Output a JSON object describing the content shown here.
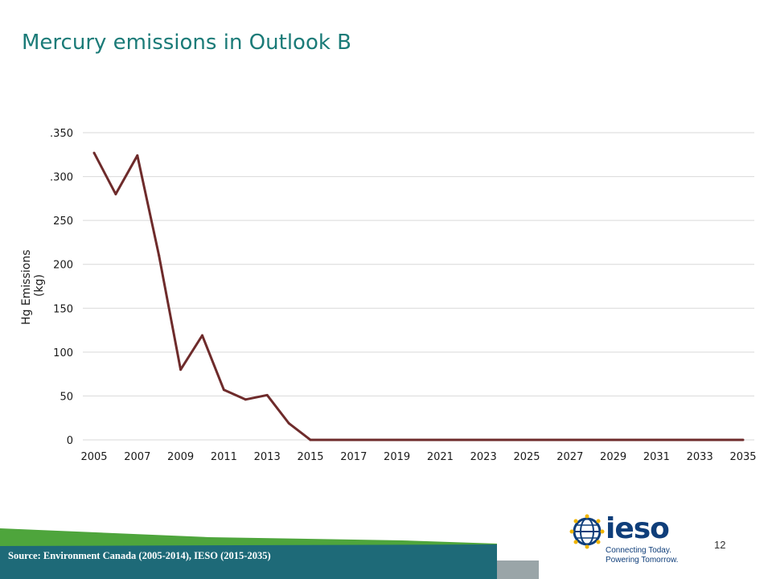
{
  "slide": {
    "title": "Mercury emissions in Outlook B",
    "page_number": "12",
    "source": "Source: Environment Canada (2005-2014), IESO (2015-2035)"
  },
  "logo": {
    "word": "ieso",
    "tagline_1": "Connecting Today.",
    "tagline_2": "Powering Tomorrow."
  },
  "colors": {
    "title": "#1b7b78",
    "line": "#6e2b2b",
    "footer_green": "#4ea53c",
    "footer_teal": "#1e6a78",
    "logo_blue": "#0f3e7a"
  },
  "chart_data": {
    "type": "line",
    "title": "",
    "xlabel": "",
    "ylabel_lines": [
      "Hg Emissions",
      "(kg)"
    ],
    "ylim": [
      0,
      350
    ],
    "yticks": [
      0,
      50,
      100,
      150,
      200,
      250,
      300,
      350
    ],
    "ytick_labels": [
      "0",
      "50",
      "100",
      "150",
      "200",
      "250",
      ".300",
      ".350"
    ],
    "xlim": [
      2005,
      2035
    ],
    "xtick_labels": [
      "2005",
      "2007",
      "2009",
      "2011",
      "2013",
      "2015",
      "2017",
      "2019",
      "2021",
      "2023",
      "2025",
      "2027",
      "2029",
      "2031",
      "2033",
      "2035"
    ],
    "grid": true,
    "series": [
      {
        "x": [
          2005,
          2006,
          2007,
          2008,
          2009,
          2010,
          2011,
          2012,
          2013,
          2014,
          2015,
          2016,
          2017,
          2018,
          2019,
          2020,
          2021,
          2022,
          2023,
          2024,
          2025,
          2026,
          2027,
          2028,
          2029,
          2030,
          2031,
          2032,
          2033,
          2034,
          2035
        ],
        "values": [
          327,
          280,
          324,
          210,
          80,
          119,
          57,
          46,
          51,
          19,
          0,
          0,
          0,
          0,
          0,
          0,
          0,
          0,
          0,
          0,
          0,
          0,
          0,
          0,
          0,
          0,
          0,
          0,
          0,
          0,
          0
        ]
      }
    ]
  }
}
